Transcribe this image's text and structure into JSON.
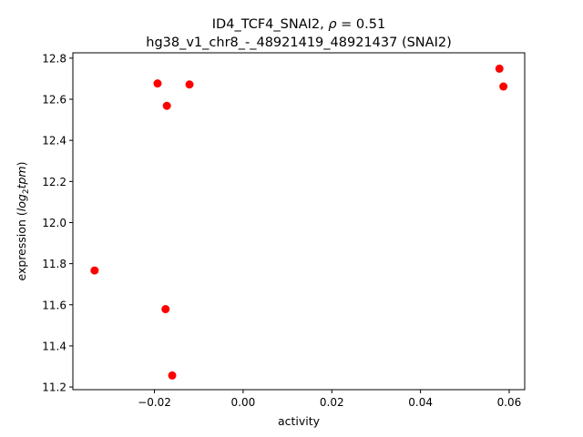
{
  "chart_data": {
    "type": "scatter",
    "title_line1_prefix": "ID4_TCF4_SNAI2, ",
    "title_rho_symbol": "ρ",
    "title_rho_value": " = 0.51",
    "title_line2": "hg38_v1_chr8_-_48921419_48921437 (SNAI2)",
    "xlabel": "activity",
    "ylabel_prefix": "expression (",
    "ylabel_log": "log",
    "ylabel_sub": "2",
    "ylabel_tpm": "tpm",
    "ylabel_suffix": ")",
    "xlim": [
      -0.0384,
      0.0635
    ],
    "ylim": [
      11.187,
      12.826
    ],
    "xticks": [
      -0.02,
      0.0,
      0.02,
      0.04,
      0.06
    ],
    "xtick_labels": [
      "−0.02",
      "0.00",
      "0.02",
      "0.04",
      "0.06"
    ],
    "yticks": [
      11.2,
      11.4,
      11.6,
      11.8,
      12.0,
      12.2,
      12.4,
      12.6,
      12.8
    ],
    "ytick_labels": [
      "11.2",
      "11.4",
      "11.6",
      "11.8",
      "12.0",
      "12.2",
      "12.4",
      "12.6",
      "12.8"
    ],
    "marker_color": "#ff0000",
    "points": [
      {
        "x": -0.0193,
        "y": 12.677
      },
      {
        "x": -0.0121,
        "y": 12.672
      },
      {
        "x": -0.0172,
        "y": 12.568
      },
      {
        "x": 0.0578,
        "y": 12.749
      },
      {
        "x": 0.0587,
        "y": 12.662
      },
      {
        "x": -0.0335,
        "y": 11.767
      },
      {
        "x": -0.0175,
        "y": 11.579
      },
      {
        "x": -0.016,
        "y": 11.256
      }
    ]
  }
}
